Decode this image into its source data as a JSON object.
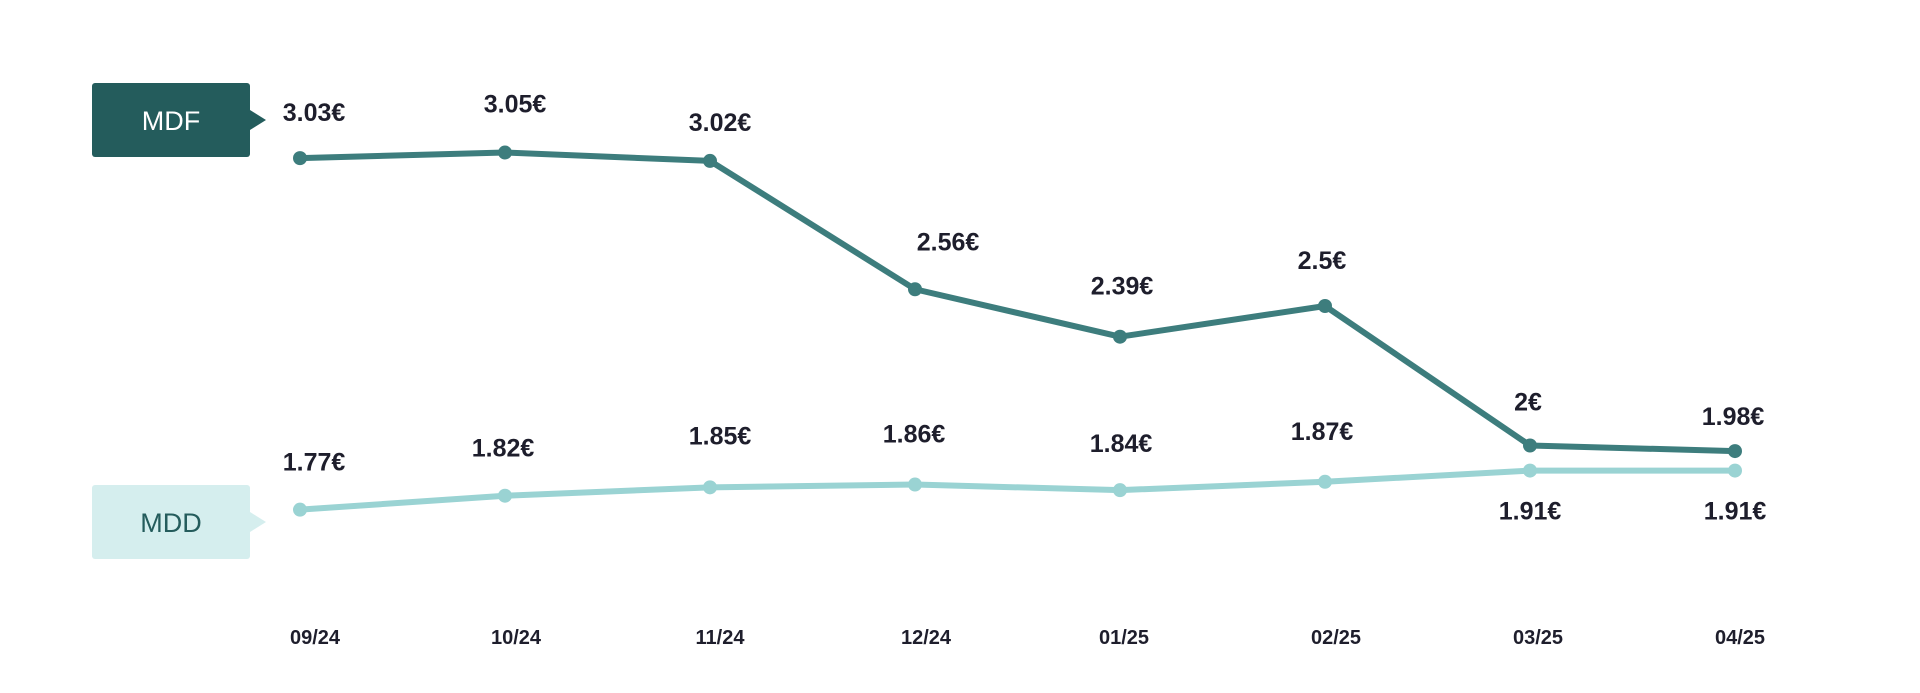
{
  "chart_data": {
    "type": "line",
    "categories": [
      "09/24",
      "10/24",
      "11/24",
      "12/24",
      "01/25",
      "02/25",
      "03/25",
      "04/25"
    ],
    "series": [
      {
        "name": "MDF",
        "values": [
          3.03,
          3.05,
          3.02,
          2.56,
          2.39,
          2.5,
          2.0,
          1.98
        ],
        "labels": [
          "3.03€",
          "3.05€",
          "3.02€",
          "2.56€",
          "2.39€",
          "2.5€",
          "2€",
          "1.98€"
        ],
        "color": "#3d7d7d",
        "tag_color": "#245c5c",
        "tag_text_color": "#ffffff"
      },
      {
        "name": "MDD",
        "values": [
          1.77,
          1.82,
          1.85,
          1.86,
          1.84,
          1.87,
          1.91,
          1.91
        ],
        "labels": [
          "1.77€",
          "1.82€",
          "1.85€",
          "1.86€",
          "1.84€",
          "1.87€",
          "1.91€",
          "1.91€"
        ],
        "color": "#9ad3d3",
        "tag_color": "#d5eeee",
        "tag_text_color": "#245c5c"
      }
    ],
    "title": "",
    "xlabel": "",
    "ylabel": "",
    "grid": false,
    "legend": "left"
  }
}
